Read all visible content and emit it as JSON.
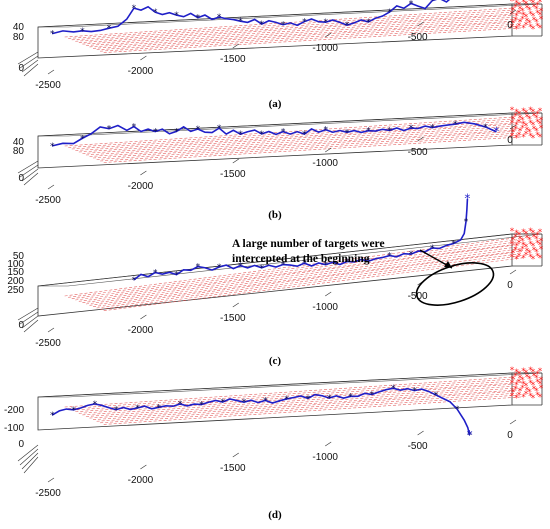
{
  "annotation": "A large number of targets were intercepted at the beginning",
  "colors": {
    "path": "#1f1fc8",
    "markers": "#0a0a50",
    "targets": "#ff2020",
    "target_lines": "#dd3a3a",
    "axes": "#000000",
    "ellipse": "#000000"
  },
  "chart_data": [
    {
      "type": "line",
      "caption": "(a)",
      "x_ticks": [
        "-2500",
        "-2000",
        "-1500",
        "-1000",
        "-500",
        "0"
      ],
      "z_ticks": [
        "0",
        "40",
        "80"
      ],
      "path_end": "ends among targets",
      "series": [
        {
          "x": [
            -2420,
            -2360,
            -2300,
            -2250,
            -2200,
            -2150,
            -2100,
            -2050,
            -2000,
            -1960,
            -1920,
            -1880,
            -1840,
            -1800,
            -1760,
            -1720,
            -1680,
            -1640,
            -1600,
            -1560,
            -1520,
            -1480,
            -1440,
            -1400,
            -1360,
            -1320,
            -1280,
            -1240,
            -1200,
            -1160,
            -1120,
            -1080,
            -1040,
            -1000,
            -960,
            -920,
            -880,
            -840,
            -800,
            -760,
            -720,
            -680,
            -640,
            -600,
            -560,
            -520,
            -480,
            -440,
            -400,
            -360,
            -320,
            -280,
            -240,
            -200,
            -160
          ],
          "z": [
            10,
            16,
            12,
            14,
            11,
            13,
            18,
            22,
            40,
            68,
            62,
            70,
            55,
            48,
            52,
            45,
            40,
            48,
            36,
            42,
            30,
            35,
            30,
            27,
            22,
            18,
            25,
            12,
            20,
            15,
            8,
            12,
            5,
            14,
            20,
            12,
            10,
            15,
            8,
            0,
            5,
            12,
            6,
            15,
            20,
            30,
            45,
            38,
            50,
            42,
            35,
            55,
            60,
            50,
            65
          ]
        }
      ]
    },
    {
      "type": "line",
      "caption": "(b)",
      "x_ticks": [
        "-2500",
        "-2000",
        "-1500",
        "-1000",
        "-500",
        "0"
      ],
      "z_ticks": [
        "0",
        "40",
        "80"
      ],
      "path_end": "exits beyond targets",
      "series": [
        {
          "x": [
            -2420,
            -2360,
            -2300,
            -2250,
            -2200,
            -2150,
            -2100,
            -2050,
            -2000,
            -1960,
            -1920,
            -1880,
            -1840,
            -1800,
            -1760,
            -1720,
            -1680,
            -1640,
            -1600,
            -1560,
            -1520,
            -1480,
            -1440,
            -1400,
            -1360,
            -1320,
            -1280,
            -1240,
            -1200,
            -1160,
            -1120,
            -1080,
            -1040,
            -1000,
            -960,
            -920,
            -880,
            -840,
            -800,
            -760,
            -720,
            -680,
            -640,
            -600,
            -560,
            -520,
            -480,
            -440,
            -400,
            -360,
            -320,
            -280,
            -240,
            -200,
            -150,
            -100,
            -40,
            20,
            80
          ],
          "z": [
            10,
            16,
            14,
            28,
            40,
            58,
            52,
            60,
            45,
            55,
            40,
            46,
            38,
            44,
            30,
            36,
            48,
            34,
            40,
            30,
            28,
            40,
            22,
            32,
            20,
            26,
            30,
            18,
            24,
            15,
            22,
            14,
            20,
            12,
            26,
            16,
            22,
            14,
            18,
            12,
            16,
            10,
            14,
            12,
            16,
            12,
            18,
            10,
            16,
            14,
            20,
            15,
            18,
            20,
            22,
            26,
            20,
            10,
            -5
          ]
        }
      ]
    },
    {
      "type": "line",
      "caption": "(c)",
      "x_ticks": [
        "-2500",
        "-2000",
        "-1500",
        "-1000",
        "-500",
        "0"
      ],
      "z_ticks": [
        "0",
        "50",
        "100",
        "150",
        "200",
        "250"
      ],
      "path_end": "rises upward near end",
      "series": [
        {
          "x": [
            -1960,
            -1920,
            -1880,
            -1840,
            -1800,
            -1760,
            -1720,
            -1680,
            -1640,
            -1600,
            -1560,
            -1520,
            -1480,
            -1440,
            -1400,
            -1360,
            -1320,
            -1280,
            -1240,
            -1200,
            -1160,
            -1120,
            -1080,
            -1040,
            -1000,
            -960,
            -920,
            -880,
            -840,
            -800,
            -760,
            -720,
            -680,
            -640,
            -600,
            -560,
            -520,
            -480,
            -440,
            -400,
            -360,
            -320,
            -280,
            -240,
            -200,
            -160,
            -120,
            -100,
            -90,
            -85,
            -82
          ],
          "z": [
            10,
            26,
            16,
            28,
            20,
            24,
            14,
            28,
            24,
            34,
            28,
            18,
            26,
            30,
            16,
            24,
            14,
            20,
            10,
            16,
            8,
            14,
            10,
            4,
            12,
            0,
            8,
            0,
            6,
            -4,
            4,
            0,
            6,
            -2,
            4,
            6,
            10,
            4,
            12,
            8,
            16,
            12,
            22,
            18,
            26,
            30,
            40,
            60,
            100,
            140,
            175
          ]
        }
      ]
    },
    {
      "type": "line",
      "caption": "(d)",
      "x_ticks": [
        "-2500",
        "-2000",
        "-1500",
        "-1000",
        "-500",
        "0"
      ],
      "z_ticks": [
        "-200",
        "-100",
        "0"
      ],
      "path_end": "dives downward near end",
      "series": [
        {
          "x": [
            -2420,
            -2380,
            -2340,
            -2300,
            -2260,
            -2220,
            -2180,
            -2140,
            -2100,
            -2060,
            -2020,
            -1980,
            -1940,
            -1900,
            -1860,
            -1820,
            -1780,
            -1740,
            -1700,
            -1660,
            -1620,
            -1580,
            -1540,
            -1500,
            -1460,
            -1420,
            -1380,
            -1340,
            -1300,
            -1260,
            -1220,
            -1180,
            -1140,
            -1100,
            -1060,
            -1020,
            -980,
            -940,
            -900,
            -860,
            -820,
            -780,
            -740,
            -700,
            -660,
            -620,
            -580,
            -540,
            -500,
            -460,
            -420,
            -380,
            -340,
            -300,
            -260,
            -220,
            -180,
            -140,
            -100,
            -80,
            -70
          ],
          "z": [
            -30,
            -10,
            -2,
            -8,
            0,
            12,
            18,
            8,
            -6,
            -18,
            -8,
            -20,
            -14,
            -6,
            -22,
            -16,
            -10,
            -14,
            -4,
            -16,
            -8,
            -12,
            -2,
            6,
            -4,
            10,
            0,
            -10,
            -2,
            -16,
            -6,
            -22,
            -12,
            -4,
            2,
            8,
            -6,
            12,
            4,
            -10,
            0,
            -14,
            -6,
            -8,
            6,
            -2,
            10,
            20,
            26,
            14,
            20,
            8,
            14,
            0,
            -20,
            -40,
            -60,
            -100,
            -160,
            -200,
            -240
          ]
        }
      ]
    }
  ]
}
